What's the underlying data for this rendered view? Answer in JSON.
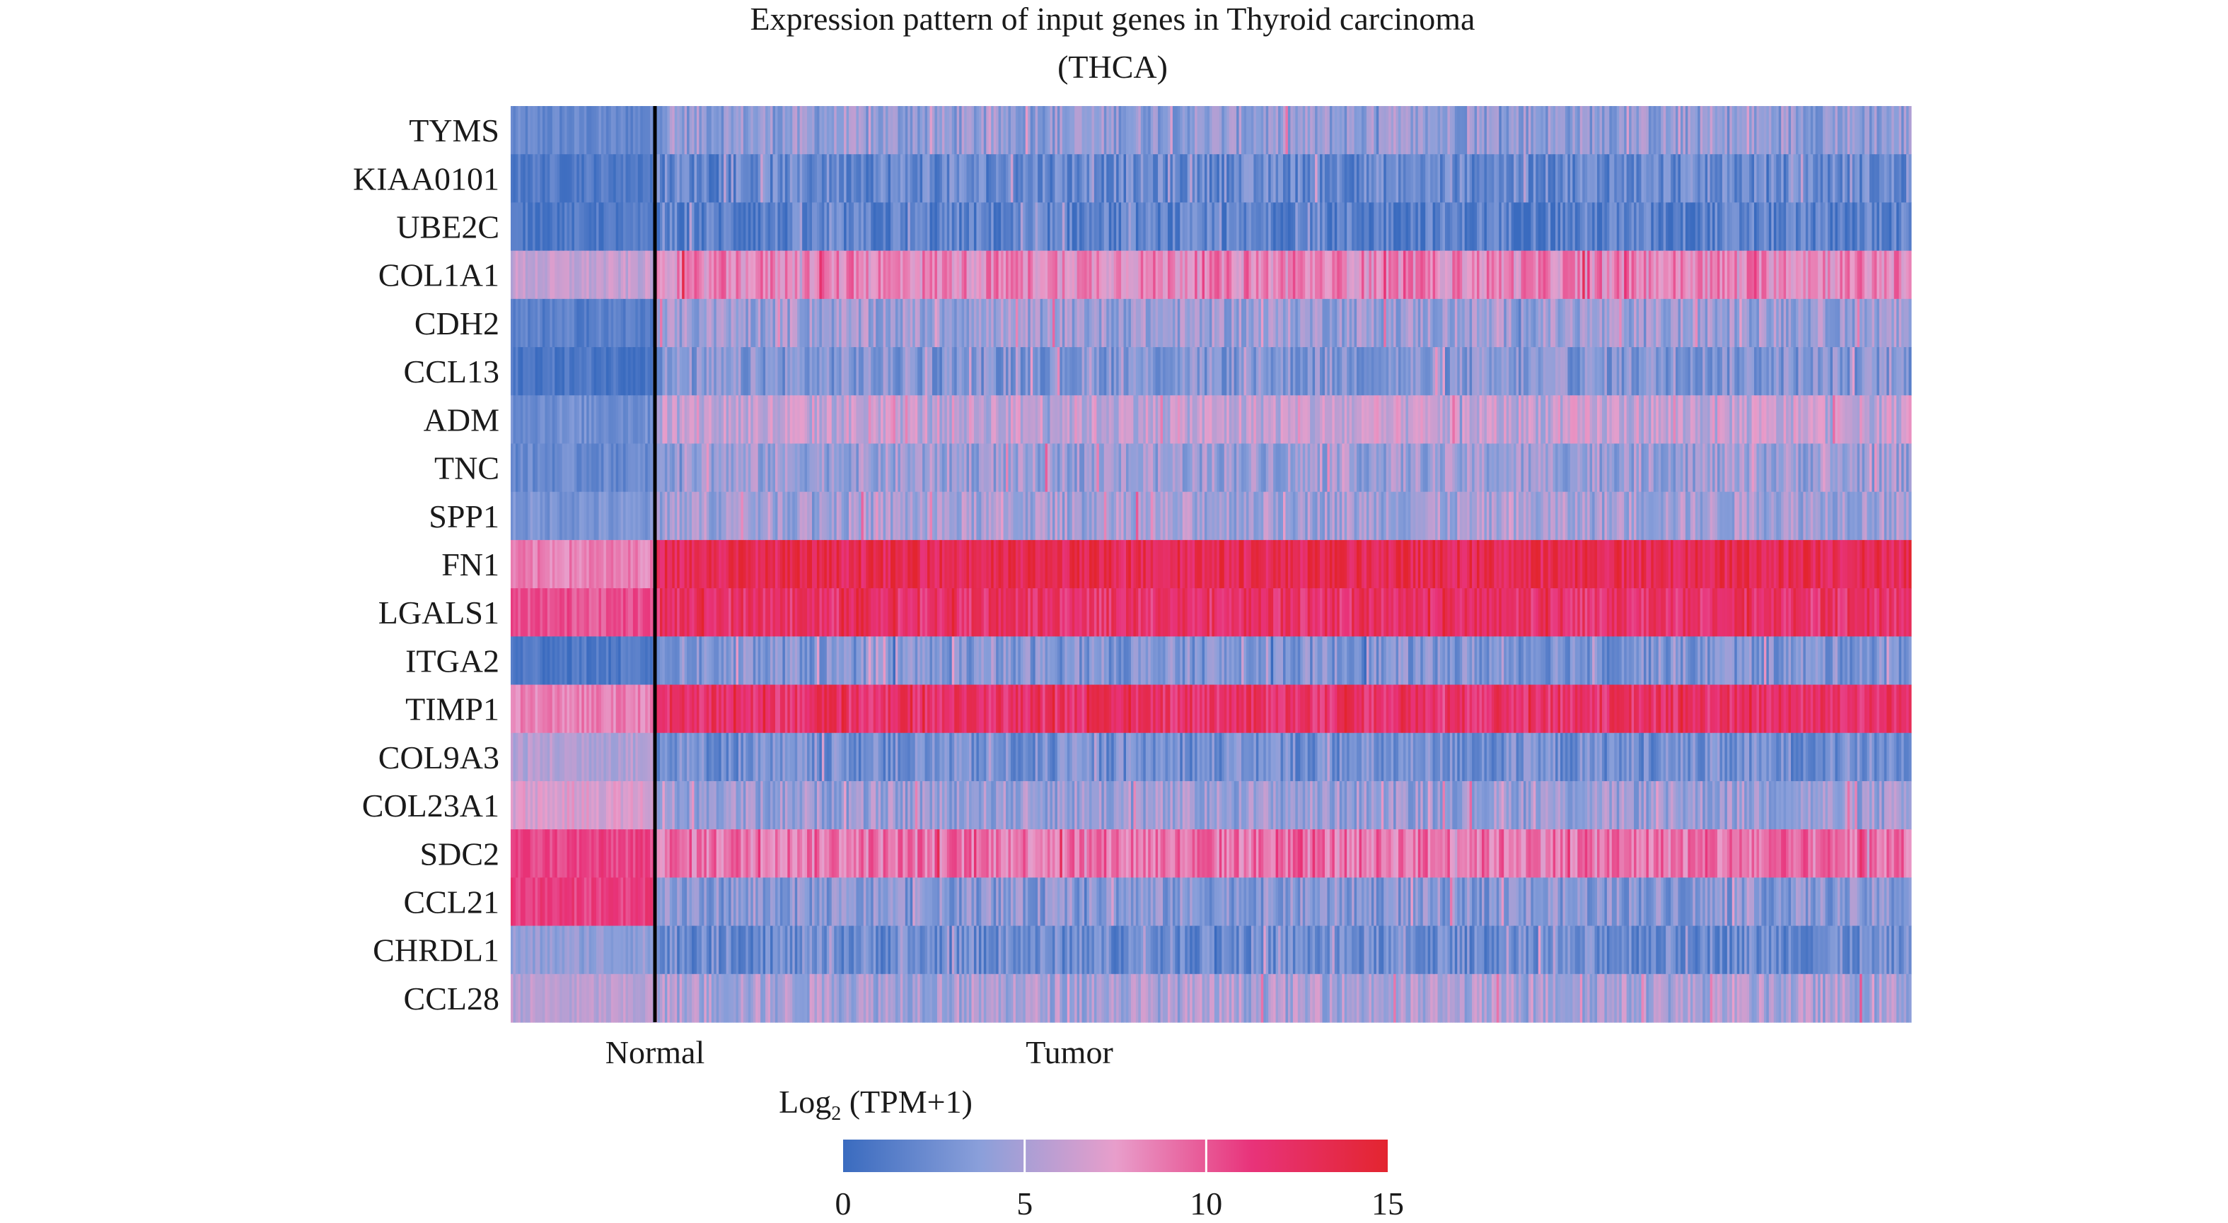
{
  "chart_data": {
    "type": "heatmap",
    "title_line1": "Expression pattern of input genes in Thyroid carcinoma",
    "title_line2": "(THCA)",
    "rows": [
      "TYMS",
      "KIAA0101",
      "UBE2C",
      "COL1A1",
      "CDH2",
      "CCL13",
      "ADM",
      "TNC",
      "SPP1",
      "FN1",
      "LGALS1",
      "ITGA2",
      "TIMP1",
      "COL9A3",
      "COL23A1",
      "SDC2",
      "CCL21",
      "CHRDL1",
      "CCL28"
    ],
    "groups": [
      {
        "label": "Normal",
        "n_samples": 59
      },
      {
        "label": "Tumor",
        "n_samples": 512
      }
    ],
    "group_means": {
      "Normal": [
        2.0,
        1.2,
        1.0,
        6.0,
        1.5,
        0.8,
        2.6,
        2.2,
        3.0,
        8.5,
        10.2,
        1.0,
        8.5,
        5.4,
        7.0,
        10.6,
        11.0,
        4.0,
        5.6
      ],
      "Tumor": [
        4.0,
        2.2,
        1.5,
        8.3,
        4.4,
        3.3,
        6.0,
        4.4,
        4.8,
        13.2,
        12.2,
        3.2,
        12.2,
        2.6,
        4.4,
        9.0,
        3.5,
        2.4,
        5.0
      ]
    },
    "legend": {
      "title_main": "Log",
      "title_sub": "2",
      "title_rest": " (TPM+1)",
      "range": [
        0,
        15
      ],
      "ticks": [
        "0",
        "5",
        "10",
        "15"
      ],
      "colors": [
        "#3a6bbf",
        "#8a9fda",
        "#e89ecb",
        "#e8337a",
        "#e3252f"
      ]
    }
  }
}
